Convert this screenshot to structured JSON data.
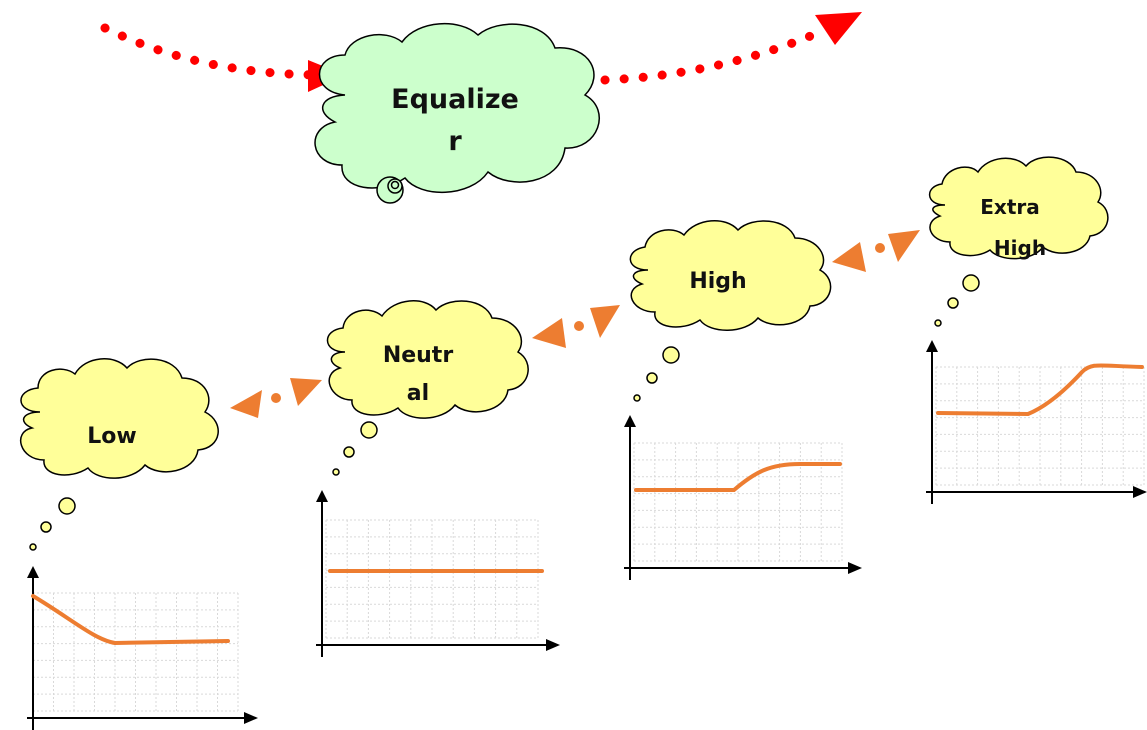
{
  "colors": {
    "equalizer_cloud": "#ccffcc",
    "level_cloud": "#ffff99",
    "cloud_stroke": "#000000",
    "red_dots": "#ff0000",
    "orange_arrows": "#ed7d31",
    "curve": "#ed7d31",
    "grid": "#d9d9d9",
    "axis": "#000000"
  },
  "equalizer": {
    "label_line1": "Equalize",
    "label_line2": "r"
  },
  "levels": [
    {
      "key": "low",
      "line1": "Low",
      "line2": ""
    },
    {
      "key": "neutral",
      "line1": "Neutr",
      "line2": "al"
    },
    {
      "key": "high",
      "line1": "High",
      "line2": ""
    },
    {
      "key": "extra-high",
      "line1": "Extra",
      "line2": "High"
    }
  ]
}
